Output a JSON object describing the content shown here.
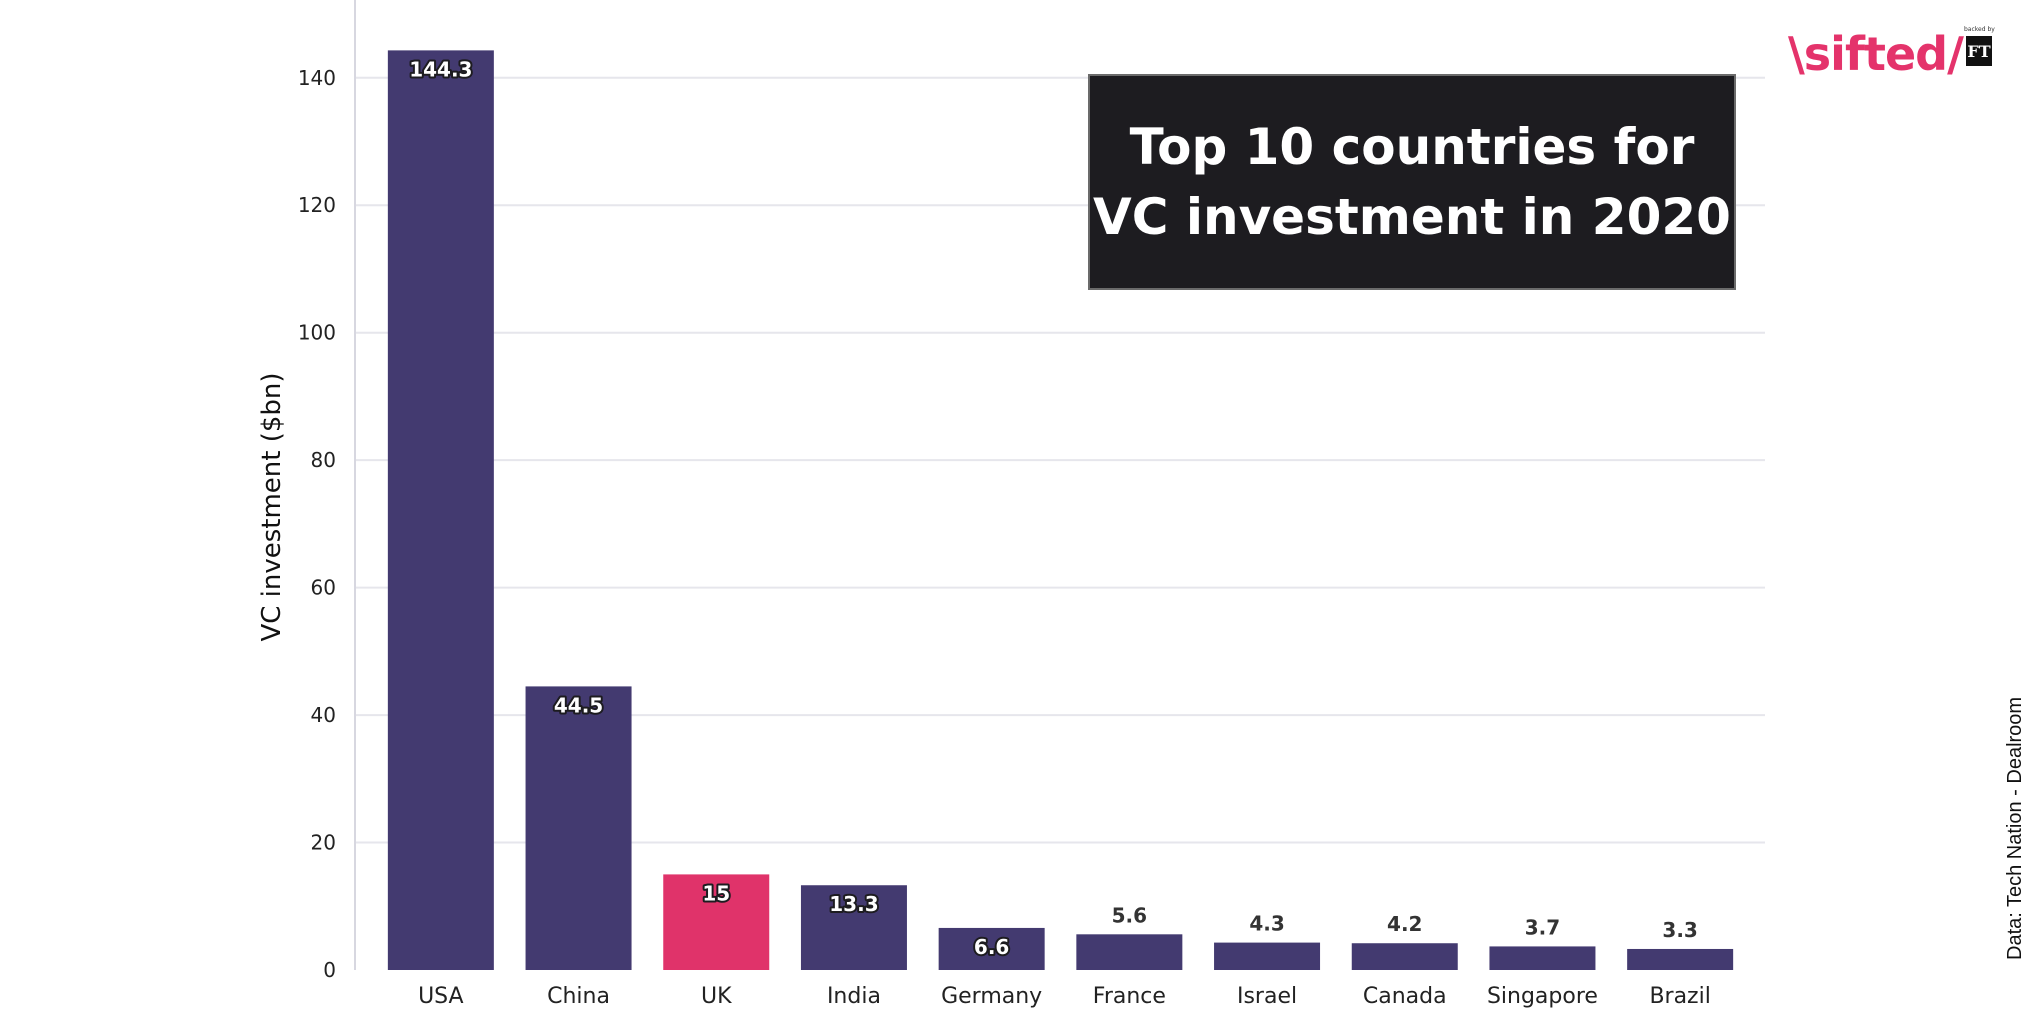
{
  "chart_data": {
    "type": "bar",
    "title": "Top 10 countries for VC investment in 2020",
    "title_lines": [
      "Top 10 countries for",
      "VC investment in 2020"
    ],
    "xlabel": "",
    "ylabel": "VC investment ($bn)",
    "ylim": [
      0,
      150
    ],
    "yticks": [
      0,
      20,
      40,
      60,
      80,
      100,
      120,
      140
    ],
    "grid": true,
    "categories": [
      "USA",
      "China",
      "UK",
      "India",
      "Germany",
      "France",
      "Israel",
      "Canada",
      "Singapore",
      "Brazil"
    ],
    "values": [
      144.3,
      44.5,
      15,
      13.3,
      6.6,
      5.6,
      4.3,
      4.2,
      3.7,
      3.3
    ],
    "value_labels": [
      "144.3",
      "44.5",
      "15",
      "13.3",
      "6.6",
      "5.6",
      "4.3",
      "4.2",
      "3.7",
      "3.3"
    ],
    "highlight": "UK",
    "colors": {
      "bar": "#433a70",
      "highlight": "#e0336a",
      "grid": "#e6e6ec",
      "axis": "#d7d7e0"
    }
  },
  "logo": {
    "word": "\\sifted/",
    "ft": "FT",
    "backed": "backed by"
  },
  "source": "Data: Tech Nation - Dealroom"
}
